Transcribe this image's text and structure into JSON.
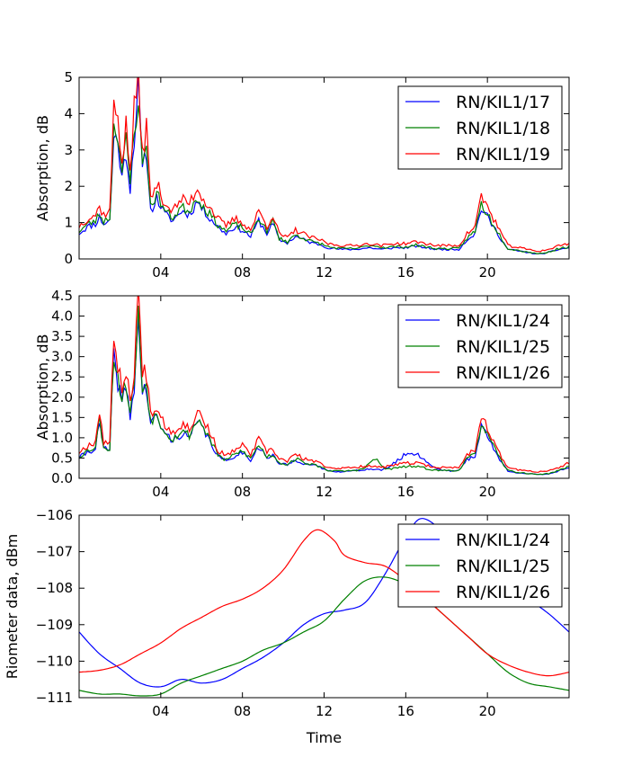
{
  "chart_data": [
    {
      "type": "line",
      "ylabel": "Absorption, dB",
      "xlabel": "",
      "xlim": [
        0,
        24
      ],
      "ylim": [
        0,
        5
      ],
      "x_ticks": [
        "04",
        "08",
        "12",
        "16",
        "20"
      ],
      "y_ticks": [
        "0",
        "1",
        "2",
        "3",
        "4",
        "5"
      ],
      "legend_position": "top-right",
      "keypoints": [
        [
          0,
          0.8
        ],
        [
          0.4,
          1.0
        ],
        [
          0.8,
          1.1
        ],
        [
          1.0,
          1.3
        ],
        [
          1.2,
          1.1
        ],
        [
          1.5,
          1.2
        ],
        [
          1.7,
          3.8
        ],
        [
          1.9,
          3.7
        ],
        [
          2.1,
          2.5
        ],
        [
          2.3,
          3.4
        ],
        [
          2.5,
          2.2
        ],
        [
          2.7,
          3.8
        ],
        [
          2.9,
          4.6
        ],
        [
          3.1,
          2.7
        ],
        [
          3.3,
          3.4
        ],
        [
          3.5,
          1.5
        ],
        [
          3.8,
          1.9
        ],
        [
          4.2,
          1.4
        ],
        [
          4.6,
          1.2
        ],
        [
          5.0,
          1.5
        ],
        [
          5.4,
          1.4
        ],
        [
          5.8,
          1.8
        ],
        [
          6.1,
          1.5
        ],
        [
          6.4,
          1.3
        ],
        [
          6.8,
          1.0
        ],
        [
          7.2,
          0.8
        ],
        [
          7.6,
          1.0
        ],
        [
          8.0,
          0.9
        ],
        [
          8.4,
          0.7
        ],
        [
          8.8,
          1.2
        ],
        [
          9.2,
          0.8
        ],
        [
          9.5,
          1.1
        ],
        [
          9.8,
          0.6
        ],
        [
          10.2,
          0.5
        ],
        [
          10.6,
          0.7
        ],
        [
          11.0,
          0.6
        ],
        [
          11.4,
          0.5
        ],
        [
          11.8,
          0.45
        ],
        [
          12.2,
          0.35
        ],
        [
          12.8,
          0.3
        ],
        [
          13.5,
          0.3
        ],
        [
          14.2,
          0.35
        ],
        [
          14.8,
          0.3
        ],
        [
          15.4,
          0.35
        ],
        [
          16.0,
          0.35
        ],
        [
          16.5,
          0.4
        ],
        [
          17.0,
          0.35
        ],
        [
          17.5,
          0.3
        ],
        [
          18.0,
          0.3
        ],
        [
          18.6,
          0.3
        ],
        [
          19.0,
          0.6
        ],
        [
          19.4,
          0.8
        ],
        [
          19.7,
          1.6
        ],
        [
          20.0,
          1.3
        ],
        [
          20.3,
          1.0
        ],
        [
          20.6,
          0.7
        ],
        [
          21.0,
          0.3
        ],
        [
          21.5,
          0.25
        ],
        [
          22.0,
          0.2
        ],
        [
          22.5,
          0.15
        ],
        [
          23.0,
          0.2
        ],
        [
          23.5,
          0.3
        ],
        [
          24,
          0.35
        ]
      ],
      "series": [
        {
          "name": "RN/KIL1/17",
          "color": "#0000ff",
          "scale": 0.88,
          "offset": 0,
          "seed": 11,
          "bumps": [
            [
              2.9,
              0.7,
              0.12
            ]
          ]
        },
        {
          "name": "RN/KIL1/18",
          "color": "#008000",
          "scale": 0.95,
          "offset": 0,
          "seed": 23,
          "bumps": [
            [
              14.5,
              0.05,
              0.5
            ]
          ]
        },
        {
          "name": "RN/KIL1/19",
          "color": "#ff0000",
          "scale": 1.06,
          "offset": 0.05,
          "seed": 37,
          "bumps": []
        }
      ]
    },
    {
      "type": "line",
      "ylabel": "Absorption, dB",
      "xlabel": "",
      "xlim": [
        0,
        24
      ],
      "ylim": [
        0,
        4.5
      ],
      "x_ticks": [
        "04",
        "08",
        "12",
        "16",
        "20"
      ],
      "y_ticks": [
        "0.0",
        "0.5",
        "1.0",
        "1.5",
        "2.0",
        "2.5",
        "3.0",
        "3.5",
        "4.0",
        "4.5"
      ],
      "legend_position": "top-right",
      "keypoints": [
        [
          0,
          0.55
        ],
        [
          0.4,
          0.7
        ],
        [
          0.8,
          0.8
        ],
        [
          1.0,
          1.5
        ],
        [
          1.2,
          0.8
        ],
        [
          1.5,
          0.75
        ],
        [
          1.7,
          3.2
        ],
        [
          1.9,
          2.6
        ],
        [
          2.1,
          2.0
        ],
        [
          2.3,
          2.5
        ],
        [
          2.5,
          1.6
        ],
        [
          2.7,
          2.5
        ],
        [
          2.9,
          4.1
        ],
        [
          3.1,
          2.3
        ],
        [
          3.3,
          2.4
        ],
        [
          3.5,
          1.5
        ],
        [
          3.8,
          1.6
        ],
        [
          4.2,
          1.2
        ],
        [
          4.6,
          1.0
        ],
        [
          5.0,
          1.2
        ],
        [
          5.4,
          1.1
        ],
        [
          5.8,
          1.5
        ],
        [
          6.1,
          1.3
        ],
        [
          6.4,
          1.0
        ],
        [
          6.8,
          0.6
        ],
        [
          7.2,
          0.45
        ],
        [
          7.6,
          0.6
        ],
        [
          8.0,
          0.7
        ],
        [
          8.4,
          0.5
        ],
        [
          8.8,
          0.85
        ],
        [
          9.2,
          0.55
        ],
        [
          9.5,
          0.6
        ],
        [
          9.8,
          0.4
        ],
        [
          10.2,
          0.35
        ],
        [
          10.6,
          0.5
        ],
        [
          11.0,
          0.4
        ],
        [
          11.4,
          0.35
        ],
        [
          11.8,
          0.3
        ],
        [
          12.2,
          0.2
        ],
        [
          12.8,
          0.18
        ],
        [
          13.5,
          0.2
        ],
        [
          14.2,
          0.25
        ],
        [
          14.8,
          0.2
        ],
        [
          15.4,
          0.25
        ],
        [
          16.0,
          0.3
        ],
        [
          16.5,
          0.3
        ],
        [
          17.0,
          0.25
        ],
        [
          17.5,
          0.2
        ],
        [
          18.0,
          0.2
        ],
        [
          18.6,
          0.2
        ],
        [
          19.0,
          0.5
        ],
        [
          19.4,
          0.6
        ],
        [
          19.7,
          1.45
        ],
        [
          20.0,
          1.1
        ],
        [
          20.3,
          0.8
        ],
        [
          20.6,
          0.5
        ],
        [
          21.0,
          0.2
        ],
        [
          21.5,
          0.15
        ],
        [
          22.0,
          0.12
        ],
        [
          22.5,
          0.1
        ],
        [
          23.0,
          0.12
        ],
        [
          23.5,
          0.2
        ],
        [
          24,
          0.3
        ]
      ],
      "series": [
        {
          "name": "RN/KIL1/24",
          "color": "#0000ff",
          "scale": 0.92,
          "offset": 0,
          "seed": 41,
          "bumps": [
            [
              16.3,
              0.35,
              0.9
            ],
            [
              2.9,
              0.2,
              0.1
            ]
          ]
        },
        {
          "name": "RN/KIL1/25",
          "color": "#008000",
          "scale": 0.97,
          "offset": 0,
          "seed": 53,
          "bumps": [
            [
              14.5,
              0.25,
              0.35
            ]
          ]
        },
        {
          "name": "RN/KIL1/26",
          "color": "#ff0000",
          "scale": 1.08,
          "offset": 0.05,
          "seed": 67,
          "bumps": [
            [
              2.9,
              0.25,
              0.1
            ]
          ]
        }
      ]
    },
    {
      "type": "line",
      "ylabel": "Riometer data, dBm",
      "xlabel": "Time",
      "xlim": [
        0,
        24
      ],
      "ylim": [
        -111,
        -106
      ],
      "x_ticks": [
        "04",
        "08",
        "12",
        "16",
        "20"
      ],
      "y_ticks": [
        "−111",
        "−110",
        "−109",
        "−108",
        "−107",
        "−106"
      ],
      "legend_position": "top-right",
      "series": [
        {
          "name": "RN/KIL1/24",
          "color": "#0000ff",
          "x": [
            0,
            1,
            2,
            3,
            4,
            5,
            6,
            7,
            8,
            9,
            10,
            11,
            12,
            13,
            14,
            15,
            16,
            16.7,
            17.5,
            18,
            19,
            20,
            21,
            22,
            23,
            24
          ],
          "y": [
            -109.2,
            -109.8,
            -110.2,
            -110.6,
            -110.7,
            -110.5,
            -110.6,
            -110.5,
            -110.2,
            -109.9,
            -109.5,
            -109.0,
            -108.7,
            -108.6,
            -108.4,
            -107.6,
            -106.6,
            -106.1,
            -106.3,
            -106.7,
            -107.1,
            -107.5,
            -107.9,
            -108.3,
            -108.7,
            -109.2
          ]
        },
        {
          "name": "RN/KIL1/25",
          "color": "#008000",
          "x": [
            0,
            1,
            2,
            3,
            4,
            5,
            6,
            7,
            8,
            9,
            10,
            11,
            12,
            13,
            14,
            15,
            16,
            17,
            18,
            19,
            20,
            21,
            22,
            23,
            24
          ],
          "y": [
            -110.8,
            -110.9,
            -110.9,
            -110.95,
            -110.9,
            -110.6,
            -110.4,
            -110.2,
            -110.0,
            -109.7,
            -109.5,
            -109.2,
            -108.9,
            -108.3,
            -107.8,
            -107.7,
            -107.9,
            -108.3,
            -108.8,
            -109.3,
            -109.8,
            -110.3,
            -110.6,
            -110.7,
            -110.8
          ]
        },
        {
          "name": "RN/KIL1/26",
          "color": "#ff0000",
          "x": [
            0,
            1,
            2,
            3,
            4,
            5,
            6,
            7,
            8,
            9,
            10,
            11,
            11.7,
            12.5,
            13,
            14,
            15,
            16,
            17,
            18,
            19,
            20,
            21,
            22,
            23,
            24
          ],
          "y": [
            -110.3,
            -110.25,
            -110.1,
            -109.8,
            -109.5,
            -109.1,
            -108.8,
            -108.5,
            -108.3,
            -108.0,
            -107.5,
            -106.7,
            -106.4,
            -106.7,
            -107.1,
            -107.3,
            -107.4,
            -107.8,
            -108.3,
            -108.8,
            -109.3,
            -109.8,
            -110.1,
            -110.3,
            -110.4,
            -110.3
          ]
        }
      ]
    }
  ]
}
